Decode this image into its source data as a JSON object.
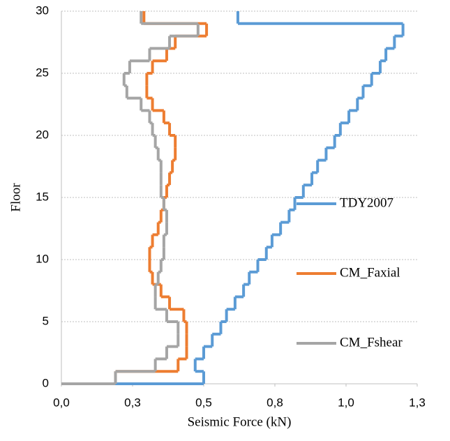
{
  "chart_data": {
    "type": "step",
    "xlabel": "Seismic Force (kN)",
    "ylabel": "Floor",
    "y": [
      1,
      2,
      3,
      4,
      5,
      6,
      7,
      8,
      9,
      10,
      11,
      12,
      13,
      14,
      15,
      16,
      17,
      18,
      19,
      20,
      21,
      22,
      23,
      24,
      25,
      26,
      27,
      28,
      29,
      30
    ],
    "series": [
      {
        "name": "TDY2007",
        "color": "#5b9bd5",
        "values": [
          0.5,
          0.47,
          0.5,
          0.53,
          0.56,
          0.58,
          0.61,
          0.64,
          0.66,
          0.69,
          0.72,
          0.74,
          0.77,
          0.8,
          0.82,
          0.85,
          0.88,
          0.9,
          0.93,
          0.96,
          0.98,
          1.01,
          1.04,
          1.06,
          1.09,
          1.12,
          1.14,
          1.17,
          1.2,
          0.62
        ]
      },
      {
        "name": "CM_Faxial",
        "color": "#ed7d31",
        "values": [
          0.19,
          0.41,
          0.44,
          0.44,
          0.44,
          0.43,
          0.38,
          0.35,
          0.32,
          0.31,
          0.31,
          0.32,
          0.34,
          0.35,
          0.36,
          0.37,
          0.38,
          0.39,
          0.4,
          0.4,
          0.38,
          0.36,
          0.32,
          0.3,
          0.3,
          0.32,
          0.37,
          0.4,
          0.51,
          0.29
        ]
      },
      {
        "name": "CM_Fshear",
        "color": "#a5a5a5",
        "values": [
          0.19,
          0.33,
          0.37,
          0.41,
          0.41,
          0.37,
          0.33,
          0.33,
          0.34,
          0.35,
          0.36,
          0.36,
          0.37,
          0.37,
          0.36,
          0.35,
          0.35,
          0.35,
          0.34,
          0.33,
          0.32,
          0.31,
          0.28,
          0.23,
          0.22,
          0.24,
          0.31,
          0.38,
          0.48,
          0.28
        ]
      }
    ],
    "xlim": [
      0,
      1.25
    ],
    "xticks": [
      {
        "value": 0,
        "label": "0,0"
      },
      {
        "value": 0.25,
        "label": "0,3"
      },
      {
        "value": 0.5,
        "label": "0,5"
      },
      {
        "value": 0.75,
        "label": "0,8"
      },
      {
        "value": 1.0,
        "label": "1,0"
      },
      {
        "value": 1.25,
        "label": "1,3"
      }
    ],
    "ylim": [
      0,
      30
    ],
    "yticks": [
      0,
      5,
      10,
      15,
      20,
      25,
      30
    ],
    "grid": true,
    "legend": "right"
  }
}
